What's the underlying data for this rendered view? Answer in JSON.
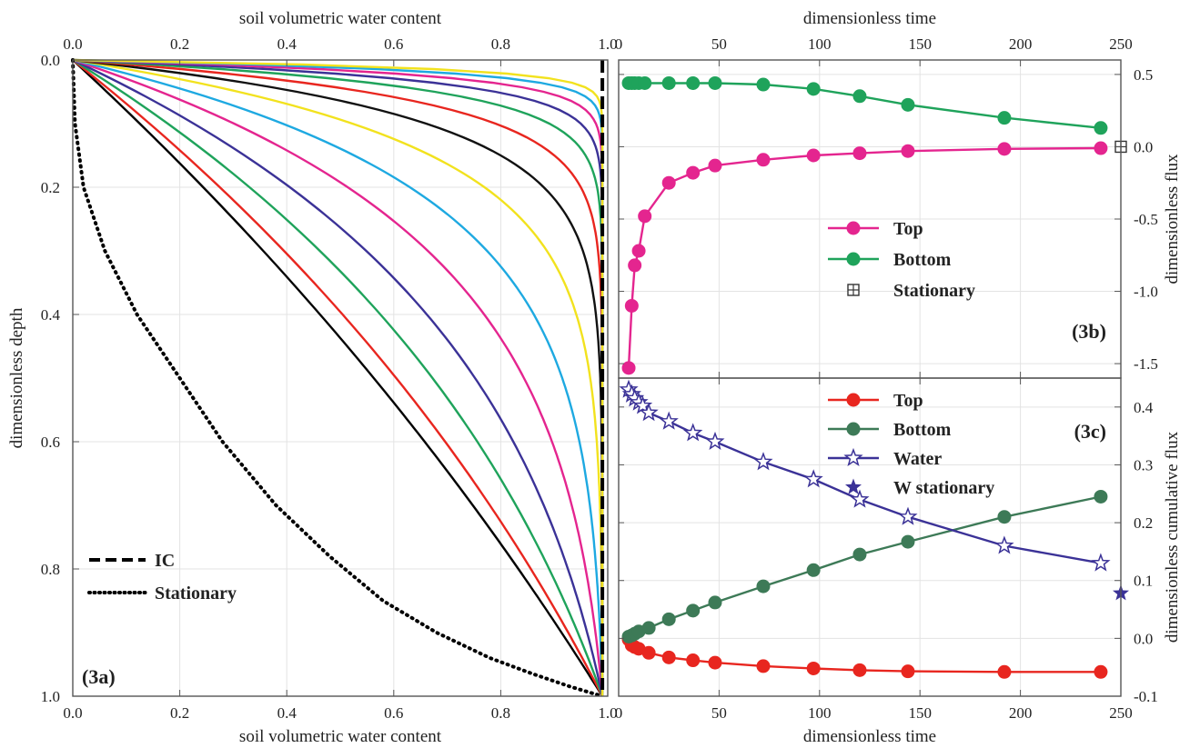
{
  "chart_data": [
    {
      "id": "3a",
      "type": "line",
      "panel_label": "(3a)",
      "x_top_label": "soil volumetric water content",
      "x_bottom_label": "soil volumetric water content",
      "ylabel": "dimensionless depth",
      "xlim": [
        0.0,
        1.0
      ],
      "ylim": [
        0.0,
        1.0
      ],
      "y_inverted": true,
      "x_ticks": [
        "0.0",
        "0.2",
        "0.4",
        "0.6",
        "0.8",
        "1.0"
      ],
      "y_ticks": [
        "0.0",
        "0.2",
        "0.4",
        "0.6",
        "0.8",
        "1.0"
      ],
      "grid": true,
      "legend": [
        {
          "label": "IC",
          "style": "dashed"
        },
        {
          "label": "Stationary",
          "style": "dotted"
        }
      ],
      "ic_curve": {
        "x": [
          0.99,
          0.99,
          0.99
        ],
        "y": [
          0.0,
          0.1,
          0.99
        ],
        "color": "#000000"
      },
      "stationary_curve": {
        "x": [
          0.0,
          0.004,
          0.02,
          0.06,
          0.12,
          0.2,
          0.28,
          0.38,
          0.48,
          0.58,
          0.68,
          0.78,
          0.86,
          0.93,
          0.99
        ],
        "y": [
          0.0,
          0.1,
          0.2,
          0.3,
          0.4,
          0.5,
          0.6,
          0.7,
          0.78,
          0.85,
          0.9,
          0.94,
          0.965,
          0.985,
          1.0
        ],
        "color": "#000000"
      },
      "series": [
        {
          "color": "#000000",
          "k": 0.55
        },
        {
          "color": "#e8261f",
          "k": 0.9
        },
        {
          "color": "#1fa35b",
          "k": 1.5
        },
        {
          "color": "#3b3297",
          "k": 2.3
        },
        {
          "color": "#e4258f",
          "k": 3.5
        },
        {
          "color": "#1ea9e1",
          "k": 5.0
        },
        {
          "color": "#f2e21e",
          "k": 7.5
        },
        {
          "color": "#111111",
          "k": 11.0
        },
        {
          "color": "#e8261f",
          "k": 16.0
        },
        {
          "color": "#1fa35b",
          "k": 23.0
        },
        {
          "color": "#3b3297",
          "k": 32.0
        },
        {
          "color": "#e4258f",
          "k": 44.0
        },
        {
          "color": "#1ea9e1",
          "k": 60.0
        },
        {
          "color": "#f2e21e",
          "k": 80.0
        }
      ]
    },
    {
      "id": "3b",
      "type": "line",
      "panel_label": "(3b)",
      "x_top_label": "dimensionless time",
      "ylabel": "dimensionless flux",
      "xlim": [
        0,
        250
      ],
      "ylim": [
        -1.6,
        0.6
      ],
      "x_ticks": [
        "0",
        "50",
        "100",
        "150",
        "200",
        "250"
      ],
      "y_ticks": [
        "0.5",
        "0.0",
        "-0.5",
        "-1.0",
        "-1.5"
      ],
      "grid": true,
      "series": [
        {
          "name": "Top",
          "color": "#e4258f",
          "marker": "circle",
          "x": [
            5,
            6.5,
            8,
            10,
            13,
            25,
            37,
            48,
            72,
            97,
            120,
            144,
            192,
            240
          ],
          "y": [
            -1.53,
            -1.1,
            -0.82,
            -0.72,
            -0.48,
            -0.25,
            -0.18,
            -0.13,
            -0.09,
            -0.06,
            -0.045,
            -0.03,
            -0.015,
            -0.01
          ]
        },
        {
          "name": "Bottom",
          "color": "#1fa35b",
          "marker": "circle",
          "x": [
            5,
            6.5,
            8,
            10,
            13,
            25,
            37,
            48,
            72,
            97,
            120,
            144,
            192,
            240
          ],
          "y": [
            0.44,
            0.44,
            0.44,
            0.44,
            0.44,
            0.44,
            0.44,
            0.44,
            0.43,
            0.4,
            0.35,
            0.29,
            0.2,
            0.13
          ]
        },
        {
          "name": "Stationary",
          "color": "#333333",
          "marker": "boxplus",
          "x": [
            250
          ],
          "y": [
            0.0
          ]
        }
      ]
    },
    {
      "id": "3c",
      "type": "line",
      "panel_label": "(3c)",
      "x_bottom_label": "dimensionless time",
      "ylabel": "dimensionless cumulative flux",
      "xlim": [
        0,
        250
      ],
      "ylim": [
        -0.1,
        0.45
      ],
      "x_ticks": [
        "0",
        "50",
        "100",
        "150",
        "200",
        "250"
      ],
      "y_ticks": [
        "0.4",
        "0.3",
        "0.2",
        "0.1",
        "0.0",
        "-0.1"
      ],
      "grid": true,
      "series": [
        {
          "name": "Top",
          "color": "#e8261f",
          "marker": "circle",
          "x": [
            5,
            6.5,
            8,
            10,
            15,
            25,
            37,
            48,
            72,
            97,
            120,
            144,
            192,
            240
          ],
          "y": [
            -0.002,
            -0.012,
            -0.015,
            -0.018,
            -0.025,
            -0.033,
            -0.038,
            -0.042,
            -0.048,
            -0.052,
            -0.055,
            -0.057,
            -0.058,
            -0.058
          ]
        },
        {
          "name": "Bottom",
          "color": "#3d7a57",
          "marker": "circle",
          "x": [
            5,
            6.5,
            8,
            10,
            15,
            25,
            37,
            48,
            72,
            97,
            120,
            144,
            192,
            240
          ],
          "y": [
            0.003,
            0.005,
            0.008,
            0.012,
            0.018,
            0.033,
            0.048,
            0.062,
            0.09,
            0.118,
            0.145,
            0.167,
            0.21,
            0.245
          ]
        },
        {
          "name": "Water",
          "color": "#3b3297",
          "marker": "star-open",
          "x": [
            5,
            6.5,
            8,
            10,
            12,
            15,
            25,
            37,
            48,
            72,
            97,
            120,
            144,
            192,
            240
          ],
          "y": [
            0.43,
            0.422,
            0.415,
            0.408,
            0.402,
            0.39,
            0.375,
            0.355,
            0.34,
            0.305,
            0.275,
            0.24,
            0.21,
            0.16,
            0.13
          ]
        },
        {
          "name": "W stationary",
          "color": "#3b3297",
          "marker": "star-filled",
          "x": [
            250
          ],
          "y": [
            0.078
          ]
        }
      ]
    }
  ]
}
